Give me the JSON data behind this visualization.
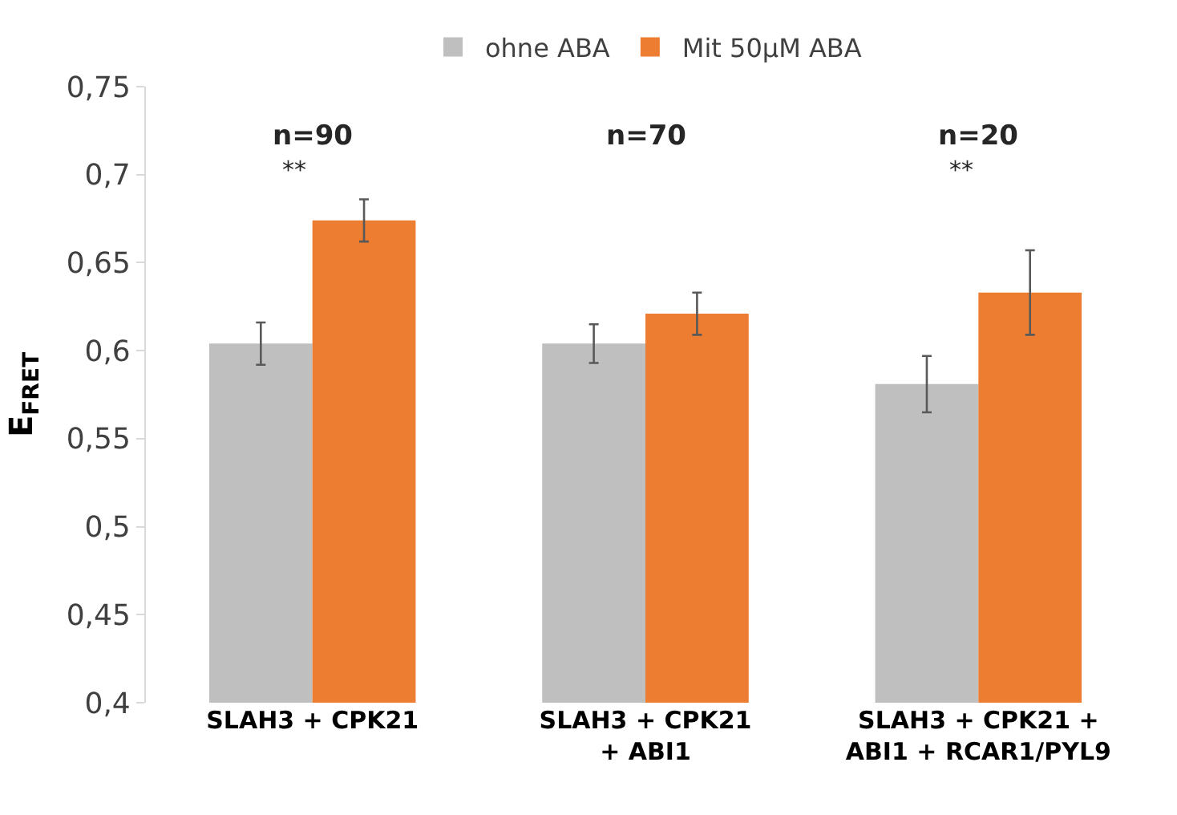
{
  "chart_data": {
    "type": "bar",
    "categories": [
      "SLAH3 + CPK21",
      "SLAH3 + CPK21\n+ ABI1",
      "SLAH3 + CPK21 +\nABI1 + RCAR1/PYL9"
    ],
    "series": [
      {
        "name": "ohne ABA",
        "color": "#bfbfbf",
        "values": [
          0.604,
          0.604,
          0.581
        ],
        "errors": [
          0.012,
          0.011,
          0.016
        ]
      },
      {
        "name": "Mit 50µM ABA",
        "color": "#ed7d31",
        "values": [
          0.674,
          0.621,
          0.633
        ],
        "errors": [
          0.012,
          0.012,
          0.024
        ]
      }
    ],
    "ylabel": "E$_{FRET}$",
    "ylim": [
      0.4,
      0.75
    ],
    "yticks": [
      {
        "value": 0.4,
        "label": "0,4"
      },
      {
        "value": 0.45,
        "label": "0,45"
      },
      {
        "value": 0.5,
        "label": "0,5"
      },
      {
        "value": 0.55,
        "label": "0,55"
      },
      {
        "value": 0.6,
        "label": "0,6"
      },
      {
        "value": 0.65,
        "label": "0,65"
      },
      {
        "value": 0.7,
        "label": "0,7"
      },
      {
        "value": 0.75,
        "label": "0,75"
      }
    ],
    "annotations": [
      "n=90",
      "**",
      "n=70",
      "n=20",
      "**"
    ],
    "legend": "top"
  }
}
